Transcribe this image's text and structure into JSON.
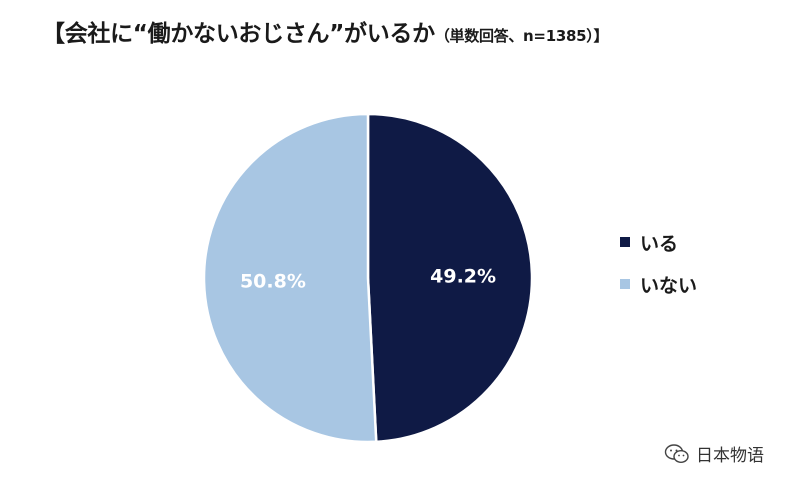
{
  "chart_data": {
    "type": "pie",
    "title": "【会社に“働かないおじさん”がいるか",
    "subtitle": "（単数回答、n=1385）】",
    "categories": [
      "いる",
      "いない"
    ],
    "values": [
      49.2,
      50.8
    ],
    "value_labels": [
      "49.2%",
      "50.8%"
    ],
    "colors": [
      "#0f1a45",
      "#a8c6e3"
    ],
    "start_angle": "12 o'clock",
    "direction": "clockwise",
    "legend_position": "right"
  },
  "watermark": {
    "text": "日本物语",
    "icon": "wechat-icon"
  }
}
